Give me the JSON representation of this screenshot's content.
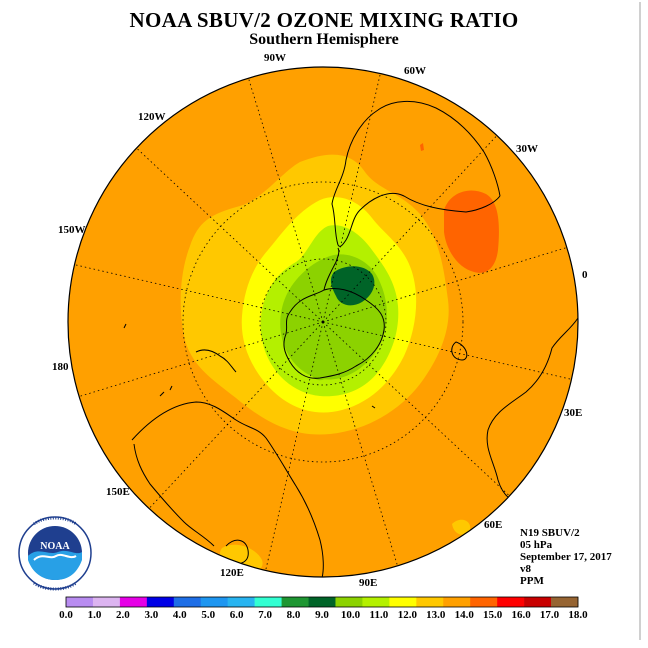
{
  "title": "NOAA SBUV/2 OZONE MIXING RATIO",
  "subtitle": "Southern Hemisphere",
  "longitude_labels": [
    "90W",
    "60W",
    "30W",
    "0",
    "120W",
    "150W",
    "180",
    "30E",
    "150E",
    "60E",
    "120E",
    "90E"
  ],
  "info": {
    "satellite": "N19 SBUV/2",
    "pressure": "05 hPa",
    "date": "September 17, 2017",
    "version": "v8",
    "units": "PPM"
  },
  "logo": {
    "text": "NOAA",
    "ring_text": "NATIONAL OCEANIC AND ATMOSPHERIC ADMINISTRATION · U.S. DEPARTMENT OF COMMERCE"
  },
  "colorbar": {
    "labels": [
      "0.0",
      "1.0",
      "2.0",
      "3.0",
      "4.0",
      "5.0",
      "6.0",
      "7.0",
      "8.0",
      "9.0",
      "10.0",
      "11.0",
      "12.0",
      "13.0",
      "14.0",
      "15.0",
      "16.0",
      "17.0",
      "18.0"
    ],
    "colors": [
      "#b88cf0",
      "#dcb4f0",
      "#e600e6",
      "#0000e6",
      "#1e6ee6",
      "#1e96f0",
      "#28b4f0",
      "#32ffd2",
      "#1e9632",
      "#006428",
      "#8cd200",
      "#b4f000",
      "#ffff00",
      "#ffc800",
      "#ffa000",
      "#ff6400",
      "#ff0000",
      "#c80000",
      "#966432"
    ]
  }
}
